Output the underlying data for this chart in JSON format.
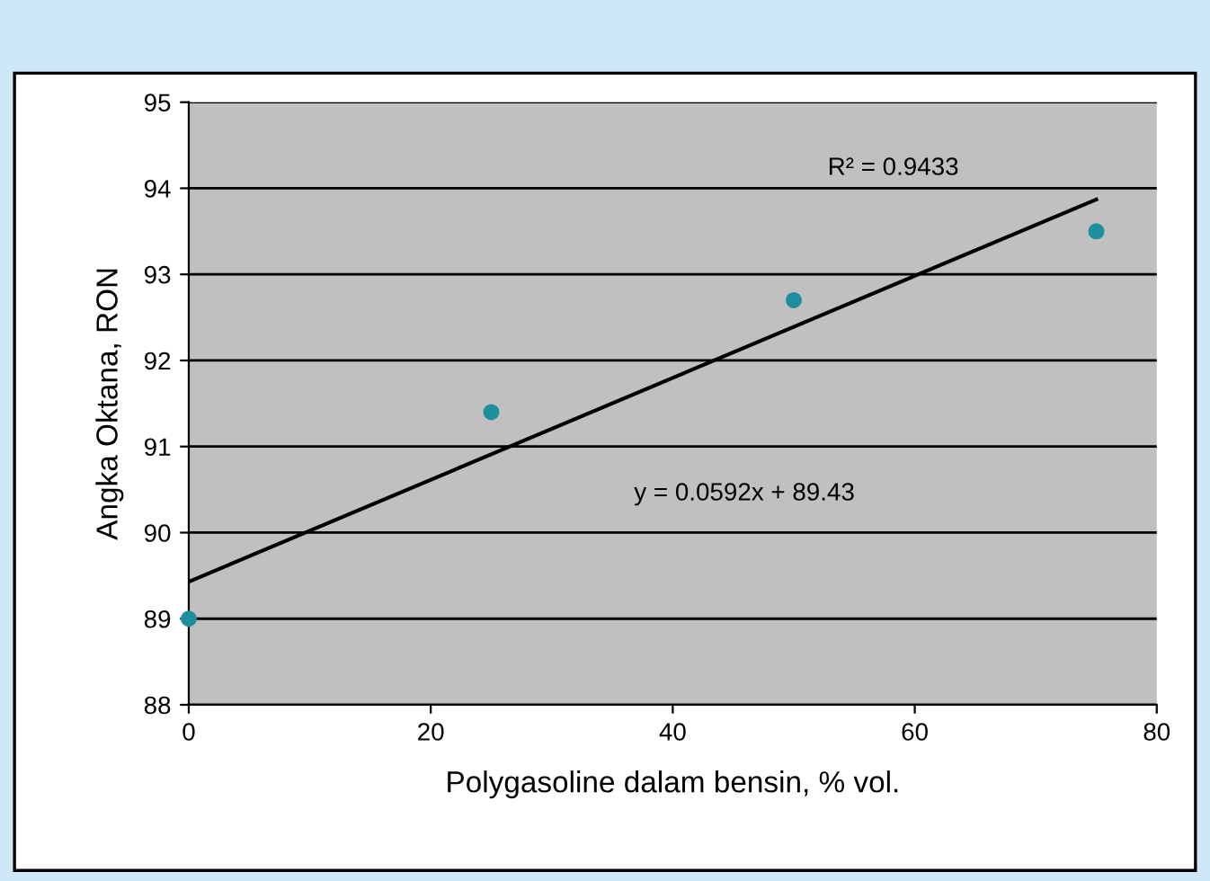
{
  "chart_data": {
    "type": "scatter",
    "xlabel": "Polygasoline dalam bensin, % vol.",
    "ylabel": "Angka Oktana, RON",
    "series": [
      {
        "color": "#1f8f9f",
        "x": [
          0,
          25,
          50,
          75
        ],
        "values": [
          89.0,
          91.4,
          92.7,
          93.5
        ],
        "marker": "circle"
      },
      {
        "type": "line",
        "color": "#000000",
        "x": [
          0,
          75
        ],
        "values": [
          89.43,
          93.87
        ],
        "marker": "none",
        "line_style": "solid"
      }
    ],
    "annotations": [
      "R² = 0.9433",
      "y = 0.0592x + 89.43"
    ],
    "xlim": [
      0,
      80
    ],
    "xticks": [
      0,
      20,
      40,
      60,
      80
    ],
    "ylim": [
      88,
      95
    ],
    "yticks": [
      88,
      89,
      90,
      91,
      92,
      93,
      94,
      95
    ],
    "grid": "y",
    "legend": false
  }
}
